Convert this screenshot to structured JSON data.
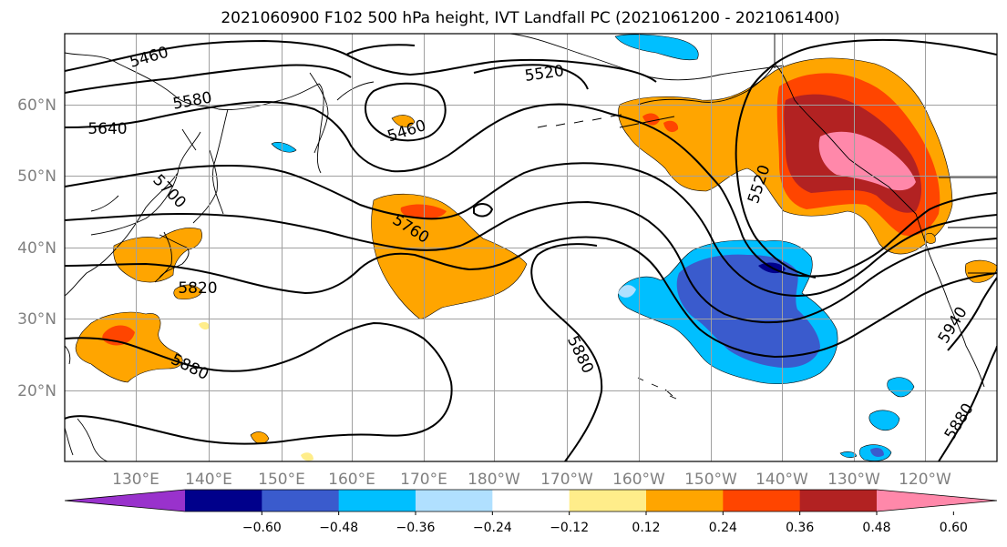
{
  "title": "2021060900 F102 500 hPa height, IVT Landfall PC (2021061200 - 2021061400)",
  "lon_labels": [
    "130°E",
    "140°E",
    "150°E",
    "160°E",
    "170°E",
    "180°W",
    "170°W",
    "160°W",
    "150°W",
    "140°W",
    "130°W",
    "120°W"
  ],
  "lat_labels": [
    "60°N",
    "50°N",
    "40°N",
    "30°N",
    "20°N"
  ],
  "colorbar": {
    "colors": [
      "#9932cc",
      "#00008b",
      "#3a5bcd",
      "#00bfff",
      "#b0e0ff",
      "#ffffff",
      "#ffed8a",
      "#ffa500",
      "#ff4500",
      "#b22222",
      "#ff88aa"
    ],
    "tick_labels": [
      "−0.60",
      "−0.48",
      "−0.36",
      "−0.24",
      "−0.12",
      "0.12",
      "0.24",
      "0.36",
      "0.48",
      "0.60"
    ]
  },
  "contour_labels": [
    "5460",
    "5580",
    "5640",
    "5520",
    "5460",
    "5700",
    "5760",
    "5520",
    "5820",
    "5880",
    "5880",
    "5940",
    "5880"
  ],
  "shading_colors": {
    "orange": "#ffa500",
    "red": "#ff4500",
    "darkred": "#b22222",
    "pink": "#ff88aa",
    "yellow": "#ffed8a",
    "cyan": "#00bfff",
    "lightblue": "#b0e0ff",
    "blue": "#3a5bcd",
    "navy": "#00008b"
  }
}
